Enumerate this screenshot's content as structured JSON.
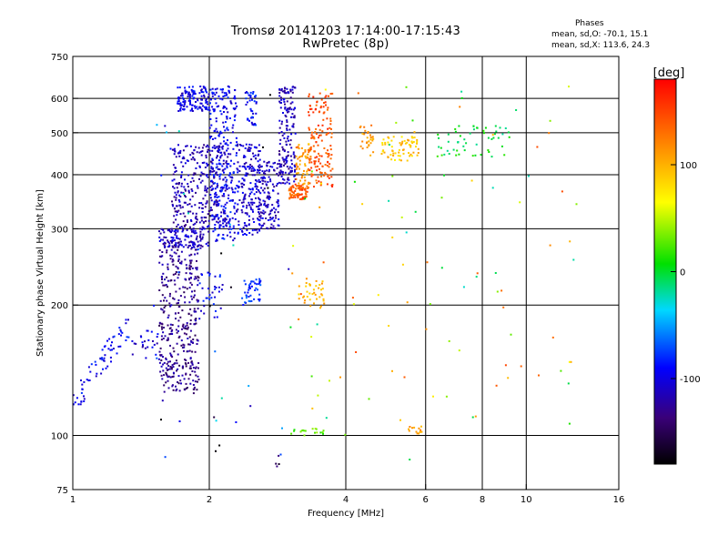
{
  "chart_data": {
    "type": "scatter",
    "title": "Tromsø 20141203 17:14:00-17:15:43",
    "subtitle": "RwPretec (8p)",
    "xlabel": "Frequency [MHz]",
    "ylabel": "Stationary phase Virtual Height [km]",
    "x_scale": "log",
    "y_scale": "log",
    "xlim": [
      1,
      16
    ],
    "ylim": [
      75,
      750
    ],
    "x_ticks": [
      "1",
      "2",
      "4",
      "6",
      "8",
      "10",
      "16"
    ],
    "x_tick_values": [
      1,
      2,
      4,
      6,
      8,
      10,
      16
    ],
    "x_grid": [
      2,
      4,
      6,
      8,
      10
    ],
    "y_ticks": [
      "75",
      "100",
      "200",
      "300",
      "400",
      "500",
      "600",
      "750"
    ],
    "y_tick_values": [
      75,
      100,
      200,
      300,
      400,
      500,
      600,
      750
    ],
    "y_grid": [
      100,
      200,
      300,
      400,
      500,
      600
    ],
    "grid": true,
    "phase_stats": {
      "title": "Phases",
      "line_o": "mean, sd,O: -70.1, 15.1",
      "line_x": "mean, sd,X: 113.6, 24.3"
    },
    "colorbar": {
      "label": "[deg]",
      "range": [
        -180,
        180
      ],
      "ticks": [
        "100",
        "0",
        "-100"
      ],
      "tick_values": [
        100,
        0,
        -100
      ]
    },
    "clusters": [
      {
        "fmin": 1.0,
        "fmax": 1.35,
        "hmin": 118,
        "hmax": 185,
        "phase": -95,
        "n": 70,
        "shape": "rising"
      },
      {
        "fmin": 1.35,
        "fmax": 1.55,
        "hmin": 150,
        "hmax": 175,
        "phase": -105,
        "n": 25
      },
      {
        "fmin": 1.55,
        "fmax": 1.9,
        "hmin": 125,
        "hmax": 280,
        "phase": -130,
        "n": 380
      },
      {
        "fmin": 1.55,
        "fmax": 2.0,
        "hmin": 270,
        "hmax": 300,
        "phase": -110,
        "n": 120
      },
      {
        "fmin": 1.65,
        "fmax": 2.2,
        "hmin": 300,
        "hmax": 470,
        "phase": -115,
        "n": 320
      },
      {
        "fmin": 1.7,
        "fmax": 2.0,
        "hmin": 560,
        "hmax": 640,
        "phase": -100,
        "n": 130
      },
      {
        "fmin": 2.0,
        "fmax": 2.3,
        "hmin": 280,
        "hmax": 640,
        "phase": -95,
        "n": 280
      },
      {
        "fmin": 1.9,
        "fmax": 2.15,
        "hmin": 185,
        "hmax": 240,
        "phase": -95,
        "n": 35
      },
      {
        "fmin": 2.3,
        "fmax": 2.6,
        "hmin": 290,
        "hmax": 470,
        "phase": -105,
        "n": 180
      },
      {
        "fmin": 2.4,
        "fmax": 2.55,
        "hmin": 520,
        "hmax": 630,
        "phase": -90,
        "n": 40
      },
      {
        "fmin": 2.55,
        "fmax": 2.85,
        "hmin": 300,
        "hmax": 430,
        "phase": -110,
        "n": 140
      },
      {
        "fmin": 2.35,
        "fmax": 2.6,
        "hmin": 200,
        "hmax": 230,
        "phase": -80,
        "n": 45
      },
      {
        "fmin": 2.85,
        "fmax": 3.1,
        "hmin": 380,
        "hmax": 640,
        "phase": -115,
        "n": 170
      },
      {
        "fmin": 3.0,
        "fmax": 3.3,
        "hmin": 350,
        "hmax": 380,
        "phase": 140,
        "n": 80
      },
      {
        "fmin": 3.1,
        "fmax": 3.35,
        "hmin": 380,
        "hmax": 470,
        "phase": 115,
        "n": 60
      },
      {
        "fmin": 3.3,
        "fmax": 3.75,
        "hmin": 370,
        "hmax": 620,
        "phase": 145,
        "n": 150
      },
      {
        "fmin": 3.15,
        "fmax": 3.6,
        "hmin": 195,
        "hmax": 230,
        "phase": 100,
        "n": 40
      },
      {
        "fmin": 3.0,
        "fmax": 3.6,
        "hmin": 100,
        "hmax": 104,
        "phase": 30,
        "n": 18
      },
      {
        "fmin": 4.3,
        "fmax": 4.6,
        "hmin": 440,
        "hmax": 520,
        "phase": 110,
        "n": 30
      },
      {
        "fmin": 4.8,
        "fmax": 5.8,
        "hmin": 430,
        "hmax": 490,
        "phase": 90,
        "n": 70
      },
      {
        "fmin": 6.3,
        "fmax": 9.2,
        "hmin": 440,
        "hmax": 520,
        "phase": 0,
        "n": 55
      },
      {
        "fmin": 5.5,
        "fmax": 5.9,
        "hmin": 101,
        "hmax": 105,
        "phase": 110,
        "n": 14
      },
      {
        "fmin": 2.8,
        "fmax": 2.85,
        "hmin": 80,
        "hmax": 90,
        "phase": -150,
        "n": 4
      }
    ],
    "sparse_count": 140
  }
}
